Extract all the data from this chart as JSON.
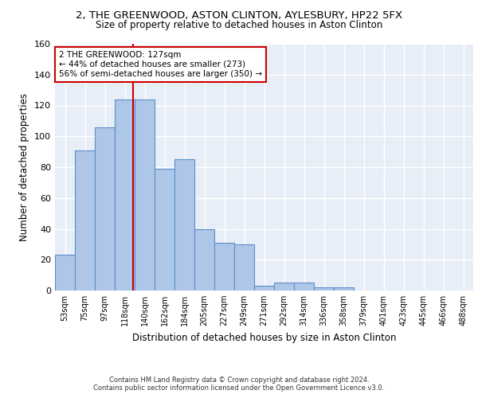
{
  "title_line1": "2, THE GREENWOOD, ASTON CLINTON, AYLESBURY, HP22 5FX",
  "title_line2": "Size of property relative to detached houses in Aston Clinton",
  "xlabel": "Distribution of detached houses by size in Aston Clinton",
  "ylabel": "Number of detached properties",
  "footer_line1": "Contains HM Land Registry data © Crown copyright and database right 2024.",
  "footer_line2": "Contains public sector information licensed under the Open Government Licence v3.0.",
  "bar_color": "#aec6e8",
  "bar_edge_color": "#5b8fc9",
  "background_color": "#e8eef7",
  "grid_color": "#ffffff",
  "annotation_box_color": "#cc0000",
  "vline_color": "#cc0000",
  "categories": [
    "53sqm",
    "75sqm",
    "97sqm",
    "118sqm",
    "140sqm",
    "162sqm",
    "184sqm",
    "205sqm",
    "227sqm",
    "249sqm",
    "271sqm",
    "292sqm",
    "314sqm",
    "336sqm",
    "358sqm",
    "379sqm",
    "401sqm",
    "423sqm",
    "445sqm",
    "466sqm",
    "488sqm"
  ],
  "values": [
    23,
    91,
    106,
    124,
    124,
    79,
    85,
    40,
    31,
    30,
    3,
    5,
    5,
    2,
    2,
    0,
    0,
    0,
    0,
    0,
    0
  ],
  "property_label": "2 THE GREENWOOD: 127sqm",
  "pct_smaller": 44,
  "n_smaller": 273,
  "pct_larger_semi": 56,
  "n_larger_semi": 350,
  "vline_index": 3.41,
  "ylim": [
    0,
    160
  ],
  "yticks": [
    0,
    20,
    40,
    60,
    80,
    100,
    120,
    140,
    160
  ]
}
